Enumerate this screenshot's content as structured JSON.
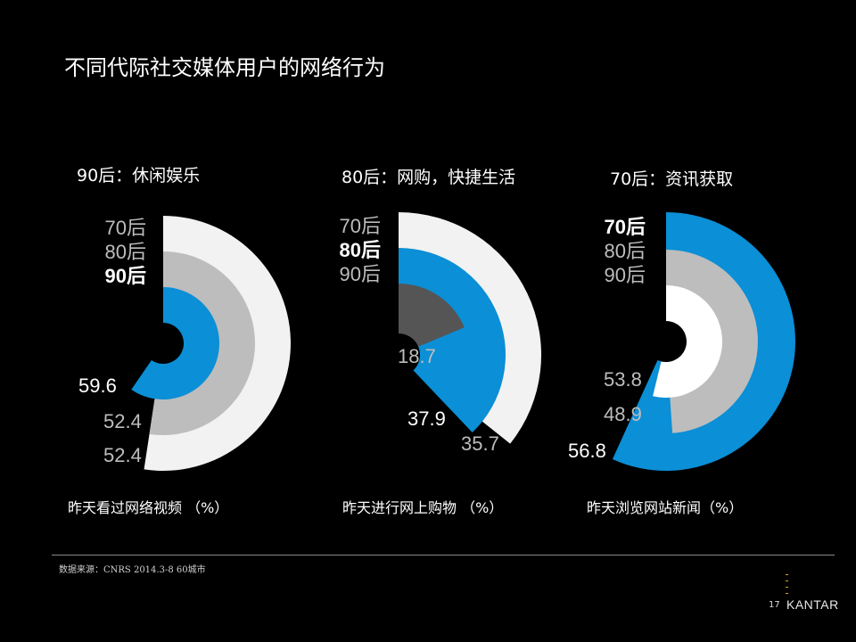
{
  "title": "不同代际社交媒体用户的网络行为",
  "colors": {
    "white_ring": "#f2f2f2",
    "gray_ring": "#bdbdbd",
    "blue_ring": "#0b8fd6",
    "dark_ring": "#555555",
    "center": "#000000"
  },
  "chart_data": [
    {
      "type": "radial-bar",
      "subtitle": "90后：休闲娱乐",
      "caption": "昨天看过网络视频 （%）",
      "legend": [
        "70后",
        "80后",
        "90后"
      ],
      "highlight": "90后",
      "series": [
        {
          "name": "70后",
          "value": 52.4,
          "label": "52.4"
        },
        {
          "name": "80后",
          "value": 52.4,
          "label": "52.4"
        },
        {
          "name": "90后",
          "value": 59.6,
          "label": "59.6"
        }
      ]
    },
    {
      "type": "radial-bar",
      "subtitle": "80后：网购，快捷生活",
      "caption": "昨天进行网上购物 （%）",
      "legend": [
        "70后",
        "80后",
        "90后"
      ],
      "highlight": "80后",
      "series": [
        {
          "name": "70后",
          "value": 35.7,
          "label": "35.7"
        },
        {
          "name": "80后",
          "value": 37.9,
          "label": "37.9"
        },
        {
          "name": "90后",
          "value": 18.7,
          "label": "18.7"
        }
      ]
    },
    {
      "type": "radial-bar",
      "subtitle": "70后：资讯获取",
      "caption": "昨天浏览网站新闻（%）",
      "legend": [
        "70后",
        "80后",
        "90后"
      ],
      "highlight": "70后",
      "series": [
        {
          "name": "70后",
          "value": 56.8,
          "label": "56.8"
        },
        {
          "name": "80后",
          "value": 48.9,
          "label": "48.9"
        },
        {
          "name": "90后",
          "value": 53.8,
          "label": "53.8"
        }
      ]
    }
  ],
  "footer": {
    "source": "数据来源：CNRS 2014.3-8  60城市",
    "page_number": "17",
    "brand": "KANTAR"
  }
}
